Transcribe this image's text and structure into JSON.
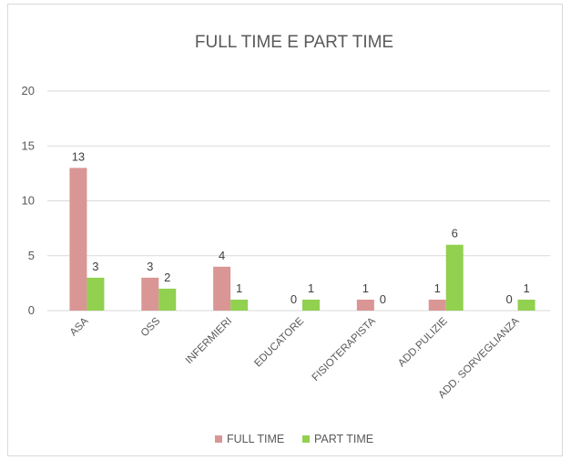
{
  "chart_data": {
    "type": "bar",
    "title": "FULL TIME E PART TIME",
    "xlabel": "",
    "ylabel": "",
    "categories": [
      "ASA",
      "OSS",
      "INFERMIERI",
      "EDUCATORE",
      "FISIOTERAPISTA",
      "ADD.PULIZIE",
      "ADD. SORVEGLIANZA"
    ],
    "series": [
      {
        "name": "FULL TIME",
        "color": "#d99694",
        "values": [
          13,
          3,
          4,
          0,
          1,
          1,
          0
        ]
      },
      {
        "name": "PART TIME",
        "color": "#92d050",
        "values": [
          3,
          2,
          1,
          1,
          0,
          6,
          1
        ]
      }
    ],
    "ylim": [
      0,
      20
    ],
    "yticks": [
      0,
      5,
      10,
      15,
      20
    ],
    "grid": true,
    "legend": "bottom",
    "gridline_color": "#d9d9d9"
  }
}
